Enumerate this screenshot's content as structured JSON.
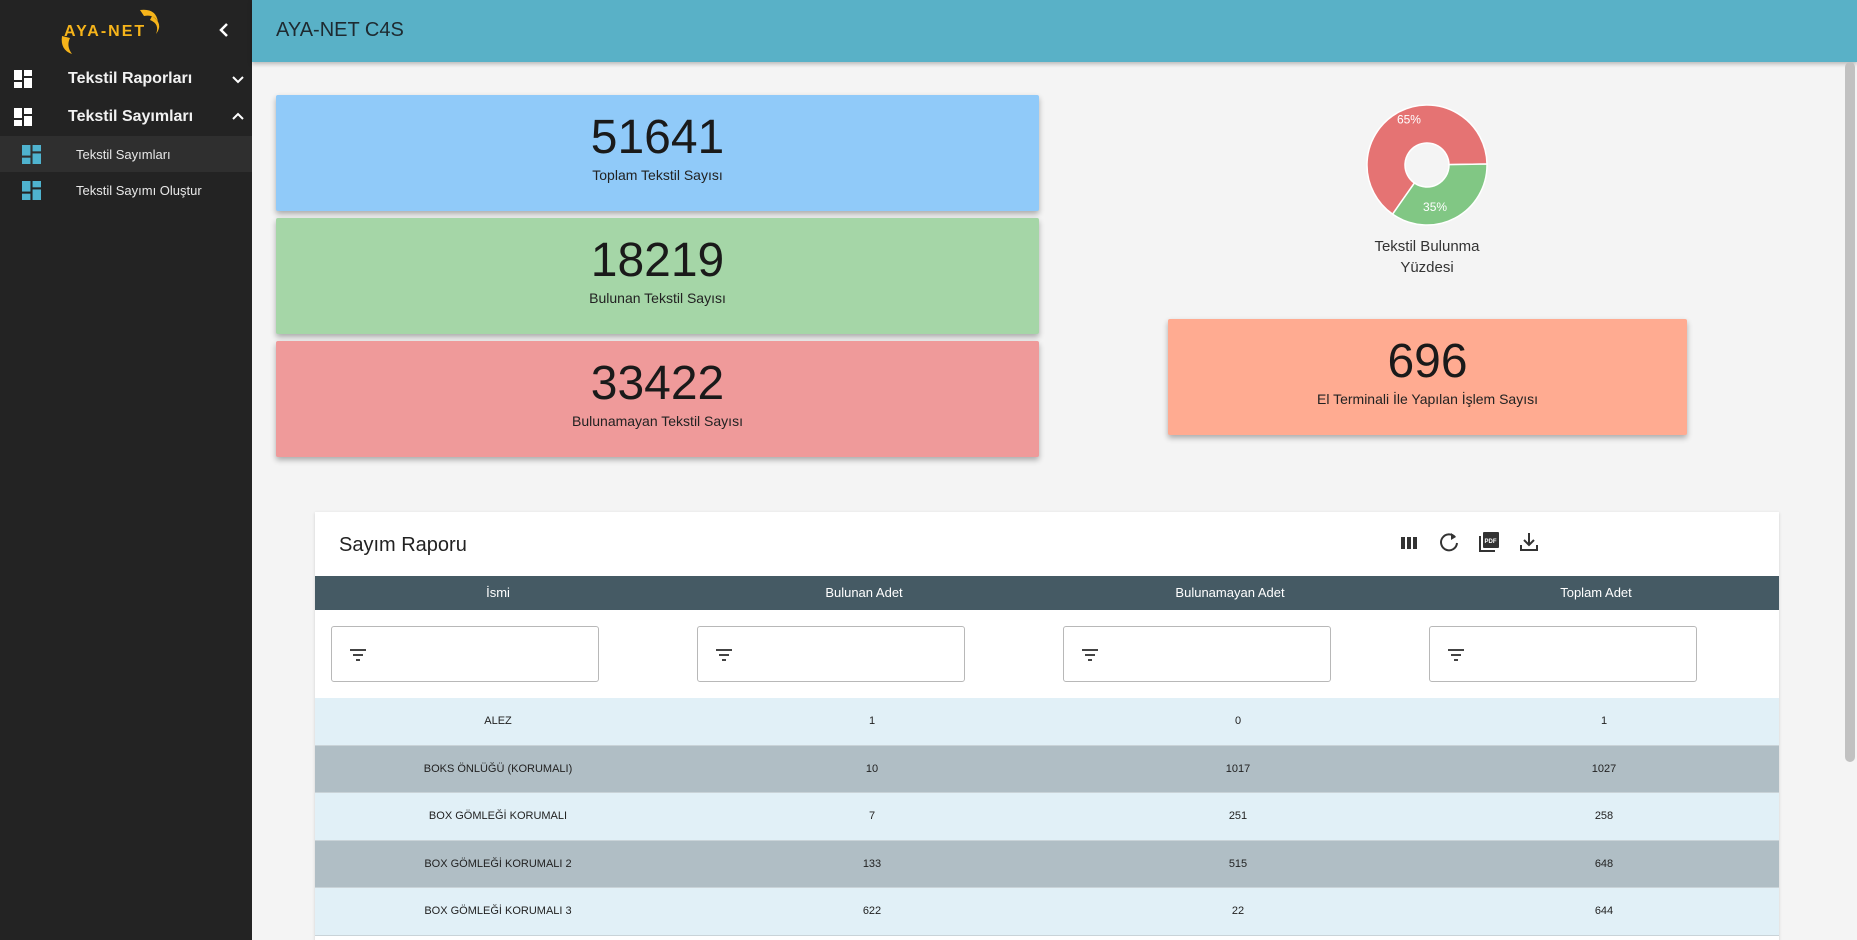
{
  "app": {
    "logo_text": "AYA-NET",
    "title": "AYA-NET C4S"
  },
  "sidebar": {
    "groups": [
      {
        "label": "Tekstil Raporları",
        "icon": "dashboard-icon",
        "expanded": false
      },
      {
        "label": "Tekstil Sayımları",
        "icon": "dashboard-icon",
        "expanded": true
      }
    ],
    "items": [
      {
        "label": "Tekstil Sayımları",
        "icon": "dashboard-icon",
        "active": true
      },
      {
        "label": "Tekstil Sayımı Oluştur",
        "icon": "dashboard-icon",
        "active": false
      }
    ]
  },
  "stats": {
    "total": {
      "value": "51641",
      "label": "Toplam Tekstil Sayısı",
      "color": "#90caf9"
    },
    "found": {
      "value": "18219",
      "label": "Bulunan Tekstil Sayısı",
      "color": "#a5d6a7"
    },
    "missing": {
      "value": "33422",
      "label": "Bulunamayan Tekstil Sayısı",
      "color": "#ef9a9a"
    },
    "terminal": {
      "value": "696",
      "label": "El Terminali İle Yapılan İşlem Sayısı",
      "color": "#ffab91"
    }
  },
  "donut": {
    "title_line1": "Tekstil Bulunma",
    "title_line2": "Yüzdesi"
  },
  "chart_data": {
    "type": "pie",
    "title": "",
    "slices": [
      {
        "label": "65%",
        "value": 65,
        "color": "#e57373"
      },
      {
        "label": "35%",
        "value": 35,
        "color": "#81c784"
      }
    ]
  },
  "report": {
    "title": "Sayım Raporu",
    "tools": [
      "columns-icon",
      "refresh-icon",
      "pdf-icon",
      "download-icon"
    ],
    "columns": [
      "İsmi",
      "Bulunan Adet",
      "Bulunamayan Adet",
      "Toplam Adet"
    ],
    "rows": [
      {
        "name": "ALEZ",
        "found": "1",
        "missing": "0",
        "total": "1"
      },
      {
        "name": "BOKS ÖNLÜĞÜ (KORUMALI)",
        "found": "10",
        "missing": "1017",
        "total": "1027"
      },
      {
        "name": "BOX GÖMLEĞİ KORUMALI",
        "found": "7",
        "missing": "251",
        "total": "258"
      },
      {
        "name": "BOX GÖMLEĞİ KORUMALI 2",
        "found": "133",
        "missing": "515",
        "total": "648"
      },
      {
        "name": "BOX GÖMLEĞİ KORUMALI 3",
        "found": "622",
        "missing": "22",
        "total": "644"
      }
    ]
  }
}
